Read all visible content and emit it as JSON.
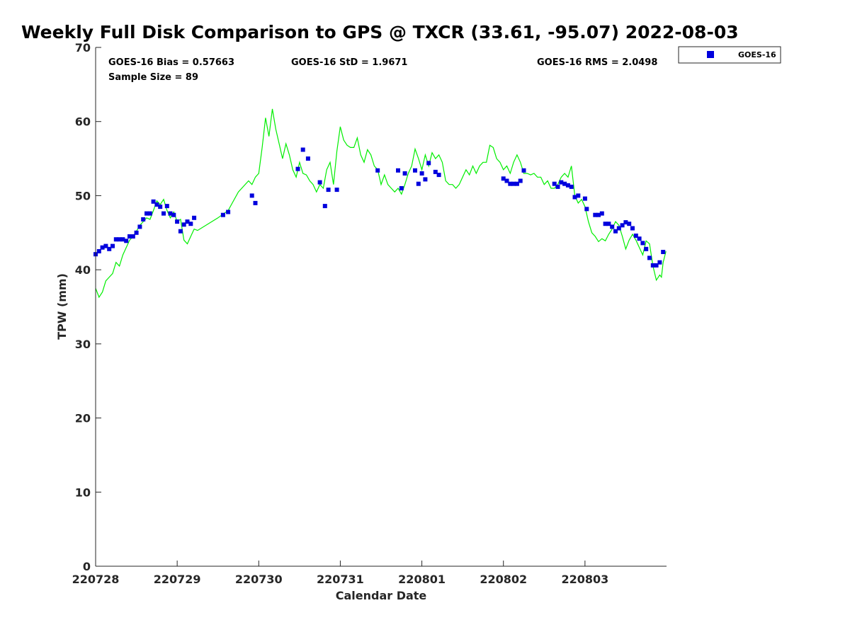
{
  "chart_data": {
    "type": "scatter",
    "title": "Weekly Full Disk Comparison to GPS @ TXCR (33.61, -95.07) 2022-08-03",
    "xlabel": "Calendar Date",
    "ylabel": "TPW (mm)",
    "ylim": [
      0,
      70
    ],
    "xlim": [
      "2022-07-28T00:00",
      "2022-08-04T00:00"
    ],
    "yticks": [
      "0",
      "10",
      "20",
      "30",
      "40",
      "50",
      "60",
      "70"
    ],
    "xticks": [
      "220728",
      "220729",
      "220730",
      "220731",
      "220801",
      "220802",
      "220803"
    ],
    "grid": false,
    "legend_position": "top-right, outside plot",
    "stats": {
      "bias": "GOES-16 Bias = 0.57663",
      "sample_size": "Sample Size = 89",
      "std": "GOES-16 StD = 1.9671",
      "rms": "GOES-16 RMS = 2.0498"
    },
    "series": [
      {
        "name": "GOES-16",
        "kind": "scatter",
        "marker": "square",
        "color": "#0000dd",
        "points": [
          [
            "2022-07-28T00:00",
            42.1
          ],
          [
            "2022-07-28T01:00",
            42.5
          ],
          [
            "2022-07-28T02:00",
            43.0
          ],
          [
            "2022-07-28T03:00",
            43.2
          ],
          [
            "2022-07-28T04:00",
            42.8
          ],
          [
            "2022-07-28T05:00",
            43.2
          ],
          [
            "2022-07-28T06:00",
            44.1
          ],
          [
            "2022-07-28T07:00",
            44.1
          ],
          [
            "2022-07-28T08:00",
            44.1
          ],
          [
            "2022-07-28T09:00",
            43.9
          ],
          [
            "2022-07-28T10:00",
            44.5
          ],
          [
            "2022-07-28T11:00",
            44.5
          ],
          [
            "2022-07-28T12:00",
            45.0
          ],
          [
            "2022-07-28T13:00",
            45.8
          ],
          [
            "2022-07-28T14:00",
            46.8
          ],
          [
            "2022-07-28T15:00",
            47.6
          ],
          [
            "2022-07-28T16:00",
            47.6
          ],
          [
            "2022-07-28T17:00",
            49.2
          ],
          [
            "2022-07-28T18:00",
            48.8
          ],
          [
            "2022-07-28T19:00",
            48.5
          ],
          [
            "2022-07-28T20:00",
            47.6
          ],
          [
            "2022-07-28T21:00",
            48.6
          ],
          [
            "2022-07-28T22:00",
            47.6
          ],
          [
            "2022-07-28T23:00",
            47.4
          ],
          [
            "2022-07-29T00:00",
            46.5
          ],
          [
            "2022-07-29T01:00",
            45.2
          ],
          [
            "2022-07-29T02:00",
            46.1
          ],
          [
            "2022-07-29T03:00",
            46.5
          ],
          [
            "2022-07-29T04:00",
            46.2
          ],
          [
            "2022-07-29T05:00",
            47.0
          ],
          [
            "2022-07-29T13:30",
            47.4
          ],
          [
            "2022-07-29T15:00",
            47.8
          ],
          [
            "2022-07-29T22:00",
            50.0
          ],
          [
            "2022-07-29T23:00",
            49.0
          ],
          [
            "2022-07-30T11:30",
            53.6
          ],
          [
            "2022-07-30T13:00",
            56.2
          ],
          [
            "2022-07-30T14:30",
            55.0
          ],
          [
            "2022-07-30T18:00",
            51.8
          ],
          [
            "2022-07-30T19:30",
            48.6
          ],
          [
            "2022-07-30T20:30",
            50.8
          ],
          [
            "2022-07-30T23:00",
            50.8
          ],
          [
            "2022-07-31T11:00",
            53.4
          ],
          [
            "2022-07-31T17:00",
            53.4
          ],
          [
            "2022-07-31T18:00",
            51.0
          ],
          [
            "2022-07-31T19:00",
            53.0
          ],
          [
            "2022-07-31T22:00",
            53.4
          ],
          [
            "2022-07-31T23:00",
            51.6
          ],
          [
            "2022-08-01T00:00",
            53.0
          ],
          [
            "2022-08-01T01:00",
            52.2
          ],
          [
            "2022-08-01T02:00",
            54.4
          ],
          [
            "2022-08-01T04:00",
            53.2
          ],
          [
            "2022-08-01T05:00",
            52.8
          ],
          [
            "2022-08-02T00:00",
            52.3
          ],
          [
            "2022-08-02T01:00",
            52.0
          ],
          [
            "2022-08-02T02:00",
            51.6
          ],
          [
            "2022-08-02T03:00",
            51.6
          ],
          [
            "2022-08-02T04:00",
            51.6
          ],
          [
            "2022-08-02T05:00",
            52.0
          ],
          [
            "2022-08-02T06:00",
            53.4
          ],
          [
            "2022-08-02T15:00",
            51.6
          ],
          [
            "2022-08-02T16:00",
            51.2
          ],
          [
            "2022-08-02T17:00",
            51.8
          ],
          [
            "2022-08-02T18:00",
            51.6
          ],
          [
            "2022-08-02T19:00",
            51.4
          ],
          [
            "2022-08-02T20:00",
            51.2
          ],
          [
            "2022-08-02T21:00",
            49.8
          ],
          [
            "2022-08-02T22:00",
            50.0
          ],
          [
            "2022-08-03T00:00",
            49.6
          ],
          [
            "2022-08-03T00:30",
            48.2
          ],
          [
            "2022-08-03T03:00",
            47.4
          ],
          [
            "2022-08-03T04:00",
            47.4
          ],
          [
            "2022-08-03T05:00",
            47.6
          ],
          [
            "2022-08-03T06:00",
            46.2
          ],
          [
            "2022-08-03T07:00",
            46.2
          ],
          [
            "2022-08-03T08:00",
            45.8
          ],
          [
            "2022-08-03T09:00",
            45.2
          ],
          [
            "2022-08-03T10:00",
            45.6
          ],
          [
            "2022-08-03T11:00",
            46.0
          ],
          [
            "2022-08-03T12:00",
            46.4
          ],
          [
            "2022-08-03T13:00",
            46.2
          ],
          [
            "2022-08-03T14:00",
            45.6
          ],
          [
            "2022-08-03T15:00",
            44.6
          ],
          [
            "2022-08-03T16:00",
            44.2
          ],
          [
            "2022-08-03T17:00",
            43.6
          ],
          [
            "2022-08-03T18:00",
            42.8
          ],
          [
            "2022-08-03T19:00",
            41.6
          ],
          [
            "2022-08-03T20:00",
            40.6
          ],
          [
            "2022-08-03T21:00",
            40.6
          ],
          [
            "2022-08-03T22:00",
            41.0
          ],
          [
            "2022-08-03T23:00",
            42.4
          ]
        ]
      },
      {
        "kind": "line",
        "color": "#00ee00",
        "points": [
          [
            "2022-07-28T00:00",
            37.5
          ],
          [
            "2022-07-28T01:00",
            36.3
          ],
          [
            "2022-07-28T02:00",
            37.0
          ],
          [
            "2022-07-28T03:00",
            38.5
          ],
          [
            "2022-07-28T04:00",
            39.0
          ],
          [
            "2022-07-28T05:00",
            39.5
          ],
          [
            "2022-07-28T06:00",
            41.0
          ],
          [
            "2022-07-28T07:00",
            40.5
          ],
          [
            "2022-07-28T08:00",
            42.0
          ],
          [
            "2022-07-28T09:00",
            43.0
          ],
          [
            "2022-07-28T10:00",
            44.0
          ],
          [
            "2022-07-28T11:00",
            44.5
          ],
          [
            "2022-07-28T12:00",
            45.2
          ],
          [
            "2022-07-28T13:00",
            46.0
          ],
          [
            "2022-07-28T14:00",
            46.5
          ],
          [
            "2022-07-28T15:00",
            47.0
          ],
          [
            "2022-07-28T16:00",
            46.8
          ],
          [
            "2022-07-28T17:00",
            48.0
          ],
          [
            "2022-07-28T18:00",
            49.3
          ],
          [
            "2022-07-28T19:00",
            48.8
          ],
          [
            "2022-07-28T20:00",
            49.5
          ],
          [
            "2022-07-28T21:00",
            48.0
          ],
          [
            "2022-07-28T22:00",
            47.0
          ],
          [
            "2022-07-28T23:00",
            47.8
          ],
          [
            "2022-07-29T00:00",
            46.5
          ],
          [
            "2022-07-29T01:00",
            46.8
          ],
          [
            "2022-07-29T02:00",
            44.0
          ],
          [
            "2022-07-29T03:00",
            43.5
          ],
          [
            "2022-07-29T04:00",
            44.5
          ],
          [
            "2022-07-29T05:00",
            45.5
          ],
          [
            "2022-07-29T06:00",
            45.3
          ],
          [
            "2022-07-29T12:00",
            47.0
          ],
          [
            "2022-07-29T15:00",
            48.0
          ],
          [
            "2022-07-29T18:00",
            50.5
          ],
          [
            "2022-07-29T21:00",
            52.0
          ],
          [
            "2022-07-29T22:00",
            51.5
          ],
          [
            "2022-07-29T23:00",
            52.5
          ],
          [
            "2022-07-30T00:00",
            53.0
          ],
          [
            "2022-07-30T01:00",
            56.5
          ],
          [
            "2022-07-30T02:00",
            60.5
          ],
          [
            "2022-07-30T03:00",
            58.0
          ],
          [
            "2022-07-30T04:00",
            61.7
          ],
          [
            "2022-07-30T05:00",
            59.0
          ],
          [
            "2022-07-30T06:00",
            57.0
          ],
          [
            "2022-07-30T07:00",
            55.0
          ],
          [
            "2022-07-30T08:00",
            57.0
          ],
          [
            "2022-07-30T09:00",
            55.5
          ],
          [
            "2022-07-30T10:00",
            53.5
          ],
          [
            "2022-07-30T11:00",
            52.5
          ],
          [
            "2022-07-30T12:00",
            54.5
          ],
          [
            "2022-07-30T13:00",
            53.0
          ],
          [
            "2022-07-30T14:00",
            52.8
          ],
          [
            "2022-07-30T15:00",
            52.0
          ],
          [
            "2022-07-30T16:00",
            51.5
          ],
          [
            "2022-07-30T17:00",
            50.5
          ],
          [
            "2022-07-30T18:00",
            51.5
          ],
          [
            "2022-07-30T19:00",
            51.0
          ],
          [
            "2022-07-30T20:00",
            53.5
          ],
          [
            "2022-07-30T21:00",
            54.5
          ],
          [
            "2022-07-30T22:00",
            51.5
          ],
          [
            "2022-07-30T23:00",
            56.0
          ],
          [
            "2022-07-31T00:00",
            59.3
          ],
          [
            "2022-07-31T01:00",
            57.5
          ],
          [
            "2022-07-31T02:00",
            56.8
          ],
          [
            "2022-07-31T03:00",
            56.5
          ],
          [
            "2022-07-31T04:00",
            56.5
          ],
          [
            "2022-07-31T05:00",
            57.8
          ],
          [
            "2022-07-31T06:00",
            55.5
          ],
          [
            "2022-07-31T07:00",
            54.5
          ],
          [
            "2022-07-31T08:00",
            56.2
          ],
          [
            "2022-07-31T09:00",
            55.5
          ],
          [
            "2022-07-31T10:00",
            54.0
          ],
          [
            "2022-07-31T11:00",
            53.5
          ],
          [
            "2022-07-31T12:00",
            51.5
          ],
          [
            "2022-07-31T13:00",
            52.8
          ],
          [
            "2022-07-31T14:00",
            51.5
          ],
          [
            "2022-07-31T15:00",
            51.0
          ],
          [
            "2022-07-31T16:00",
            50.5
          ],
          [
            "2022-07-31T17:00",
            51.0
          ],
          [
            "2022-07-31T18:00",
            50.2
          ],
          [
            "2022-07-31T19:00",
            51.5
          ],
          [
            "2022-07-31T20:00",
            53.0
          ],
          [
            "2022-07-31T21:00",
            54.0
          ],
          [
            "2022-07-31T22:00",
            56.3
          ],
          [
            "2022-07-31T23:00",
            55.0
          ],
          [
            "2022-08-01T00:00",
            53.5
          ],
          [
            "2022-08-01T01:00",
            55.5
          ],
          [
            "2022-08-01T02:00",
            54.0
          ],
          [
            "2022-08-01T03:00",
            55.8
          ],
          [
            "2022-08-01T04:00",
            55.0
          ],
          [
            "2022-08-01T05:00",
            55.5
          ],
          [
            "2022-08-01T06:00",
            54.5
          ],
          [
            "2022-08-01T07:00",
            52.0
          ],
          [
            "2022-08-01T08:00",
            51.5
          ],
          [
            "2022-08-01T09:00",
            51.5
          ],
          [
            "2022-08-01T10:00",
            51.0
          ],
          [
            "2022-08-01T11:00",
            51.5
          ],
          [
            "2022-08-01T12:00",
            52.5
          ],
          [
            "2022-08-01T13:00",
            53.5
          ],
          [
            "2022-08-01T14:00",
            52.8
          ],
          [
            "2022-08-01T15:00",
            54.0
          ],
          [
            "2022-08-01T16:00",
            53.0
          ],
          [
            "2022-08-01T17:00",
            54.0
          ],
          [
            "2022-08-01T18:00",
            54.5
          ],
          [
            "2022-08-01T19:00",
            54.5
          ],
          [
            "2022-08-01T20:00",
            56.8
          ],
          [
            "2022-08-01T21:00",
            56.5
          ],
          [
            "2022-08-01T22:00",
            55.0
          ],
          [
            "2022-08-01T23:00",
            54.5
          ],
          [
            "2022-08-02T00:00",
            53.5
          ],
          [
            "2022-08-02T01:00",
            54.0
          ],
          [
            "2022-08-02T02:00",
            53.0
          ],
          [
            "2022-08-02T03:00",
            54.5
          ],
          [
            "2022-08-02T04:00",
            55.5
          ],
          [
            "2022-08-02T05:00",
            54.5
          ],
          [
            "2022-08-02T06:00",
            53.0
          ],
          [
            "2022-08-02T07:00",
            53.0
          ],
          [
            "2022-08-02T08:00",
            52.8
          ],
          [
            "2022-08-02T09:00",
            53.0
          ],
          [
            "2022-08-02T10:00",
            52.5
          ],
          [
            "2022-08-02T11:00",
            52.5
          ],
          [
            "2022-08-02T12:00",
            51.5
          ],
          [
            "2022-08-02T13:00",
            52.0
          ],
          [
            "2022-08-02T14:00",
            51.0
          ],
          [
            "2022-08-02T15:00",
            51.0
          ],
          [
            "2022-08-02T16:00",
            51.5
          ],
          [
            "2022-08-02T17:00",
            52.5
          ],
          [
            "2022-08-02T18:00",
            53.0
          ],
          [
            "2022-08-02T19:00",
            52.5
          ],
          [
            "2022-08-02T20:00",
            54.0
          ],
          [
            "2022-08-02T21:00",
            50.0
          ],
          [
            "2022-08-02T22:00",
            49.0
          ],
          [
            "2022-08-02T23:00",
            49.5
          ],
          [
            "2022-08-03T00:00",
            48.5
          ],
          [
            "2022-08-03T01:00",
            46.5
          ],
          [
            "2022-08-03T02:00",
            45.0
          ],
          [
            "2022-08-03T03:00",
            44.5
          ],
          [
            "2022-08-03T04:00",
            43.8
          ],
          [
            "2022-08-03T05:00",
            44.2
          ],
          [
            "2022-08-03T06:00",
            43.9
          ],
          [
            "2022-08-03T07:00",
            44.8
          ],
          [
            "2022-08-03T08:00",
            45.5
          ],
          [
            "2022-08-03T09:00",
            46.5
          ],
          [
            "2022-08-03T10:00",
            46.0
          ],
          [
            "2022-08-03T11:00",
            44.5
          ],
          [
            "2022-08-03T12:00",
            42.8
          ],
          [
            "2022-08-03T13:00",
            44.0
          ],
          [
            "2022-08-03T14:00",
            44.8
          ],
          [
            "2022-08-03T15:00",
            44.0
          ],
          [
            "2022-08-03T16:00",
            43.0
          ],
          [
            "2022-08-03T17:00",
            42.0
          ],
          [
            "2022-08-03T18:00",
            43.9
          ],
          [
            "2022-08-03T19:00",
            43.5
          ],
          [
            "2022-08-03T20:00",
            40.5
          ],
          [
            "2022-08-03T21:00",
            38.6
          ],
          [
            "2022-08-03T22:00",
            39.3
          ],
          [
            "2022-08-03T22:30",
            39.0
          ],
          [
            "2022-08-03T23:00",
            41.0
          ],
          [
            "2022-08-03T23:50",
            42.5
          ]
        ]
      }
    ]
  }
}
